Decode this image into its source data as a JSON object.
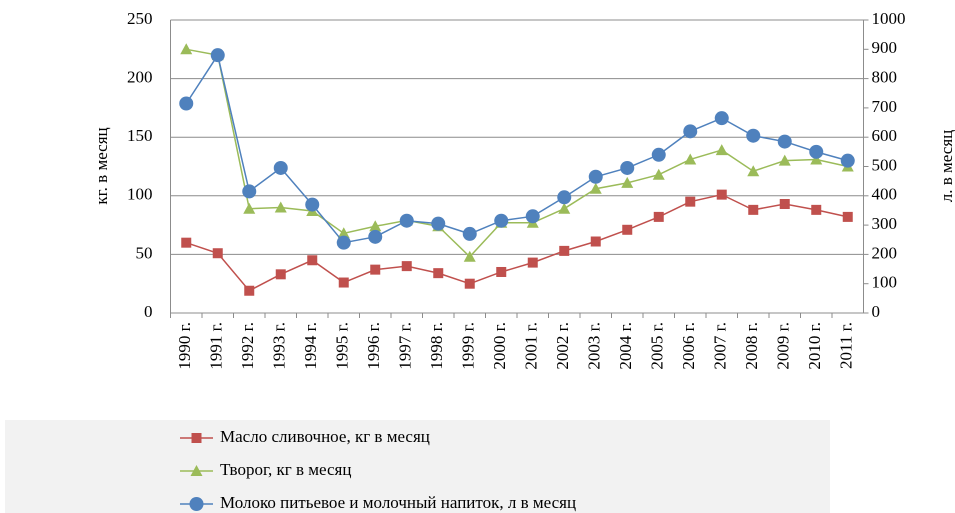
{
  "chart_data": {
    "type": "line",
    "y_label": "кг. в месяц",
    "y2_label": "л. в месяц",
    "categories": [
      "1990 г.",
      "1991 г.",
      "1992 г.",
      "1993 г.",
      "1994 г.",
      "1995 г.",
      "1996 г.",
      "1997 г.",
      "1998 г.",
      "1999 г.",
      "2000 г.",
      "2001 г.",
      "2002 г.",
      "2003 г.",
      "2004 г.",
      "2005 г.",
      "2006 г.",
      "2007 г.",
      "2008 г.",
      "2009 г.",
      "2010 г.",
      "2011 г."
    ],
    "series": [
      {
        "name": "Масло сливочное, кг в месяц",
        "color": "#c0504d",
        "marker": "square",
        "values": [
          60,
          51,
          19,
          33,
          45,
          26,
          37,
          40,
          34,
          25,
          35,
          43,
          53,
          61,
          71,
          82,
          95,
          101,
          88,
          93,
          88,
          82
        ]
      },
      {
        "name": "Творог, кг в месяц",
        "color": "#9bbb59",
        "marker": "triangle",
        "values": [
          225,
          220,
          89,
          90,
          87,
          68,
          74,
          79,
          74,
          48,
          77,
          77,
          89,
          106,
          111,
          118,
          131,
          139,
          121,
          130,
          131,
          125
        ]
      },
      {
        "name": "Молоко питьевое и молочный напиток, л в месяц",
        "color": "#4f81bd",
        "marker": "circle",
        "axis": "y2",
        "values": [
          715,
          880,
          415,
          495,
          370,
          240,
          260,
          315,
          305,
          270,
          315,
          330,
          395,
          465,
          495,
          540,
          620,
          665,
          605,
          585,
          550,
          520
        ]
      }
    ],
    "ylim": [
      0,
      250
    ],
    "yticks": [
      0,
      50,
      100,
      150,
      200,
      250
    ],
    "y2lim": [
      0,
      1000
    ],
    "y2ticks": [
      0,
      100,
      200,
      300,
      400,
      500,
      600,
      700,
      800,
      900,
      1000
    ],
    "grid": true,
    "legend": "bottom"
  }
}
